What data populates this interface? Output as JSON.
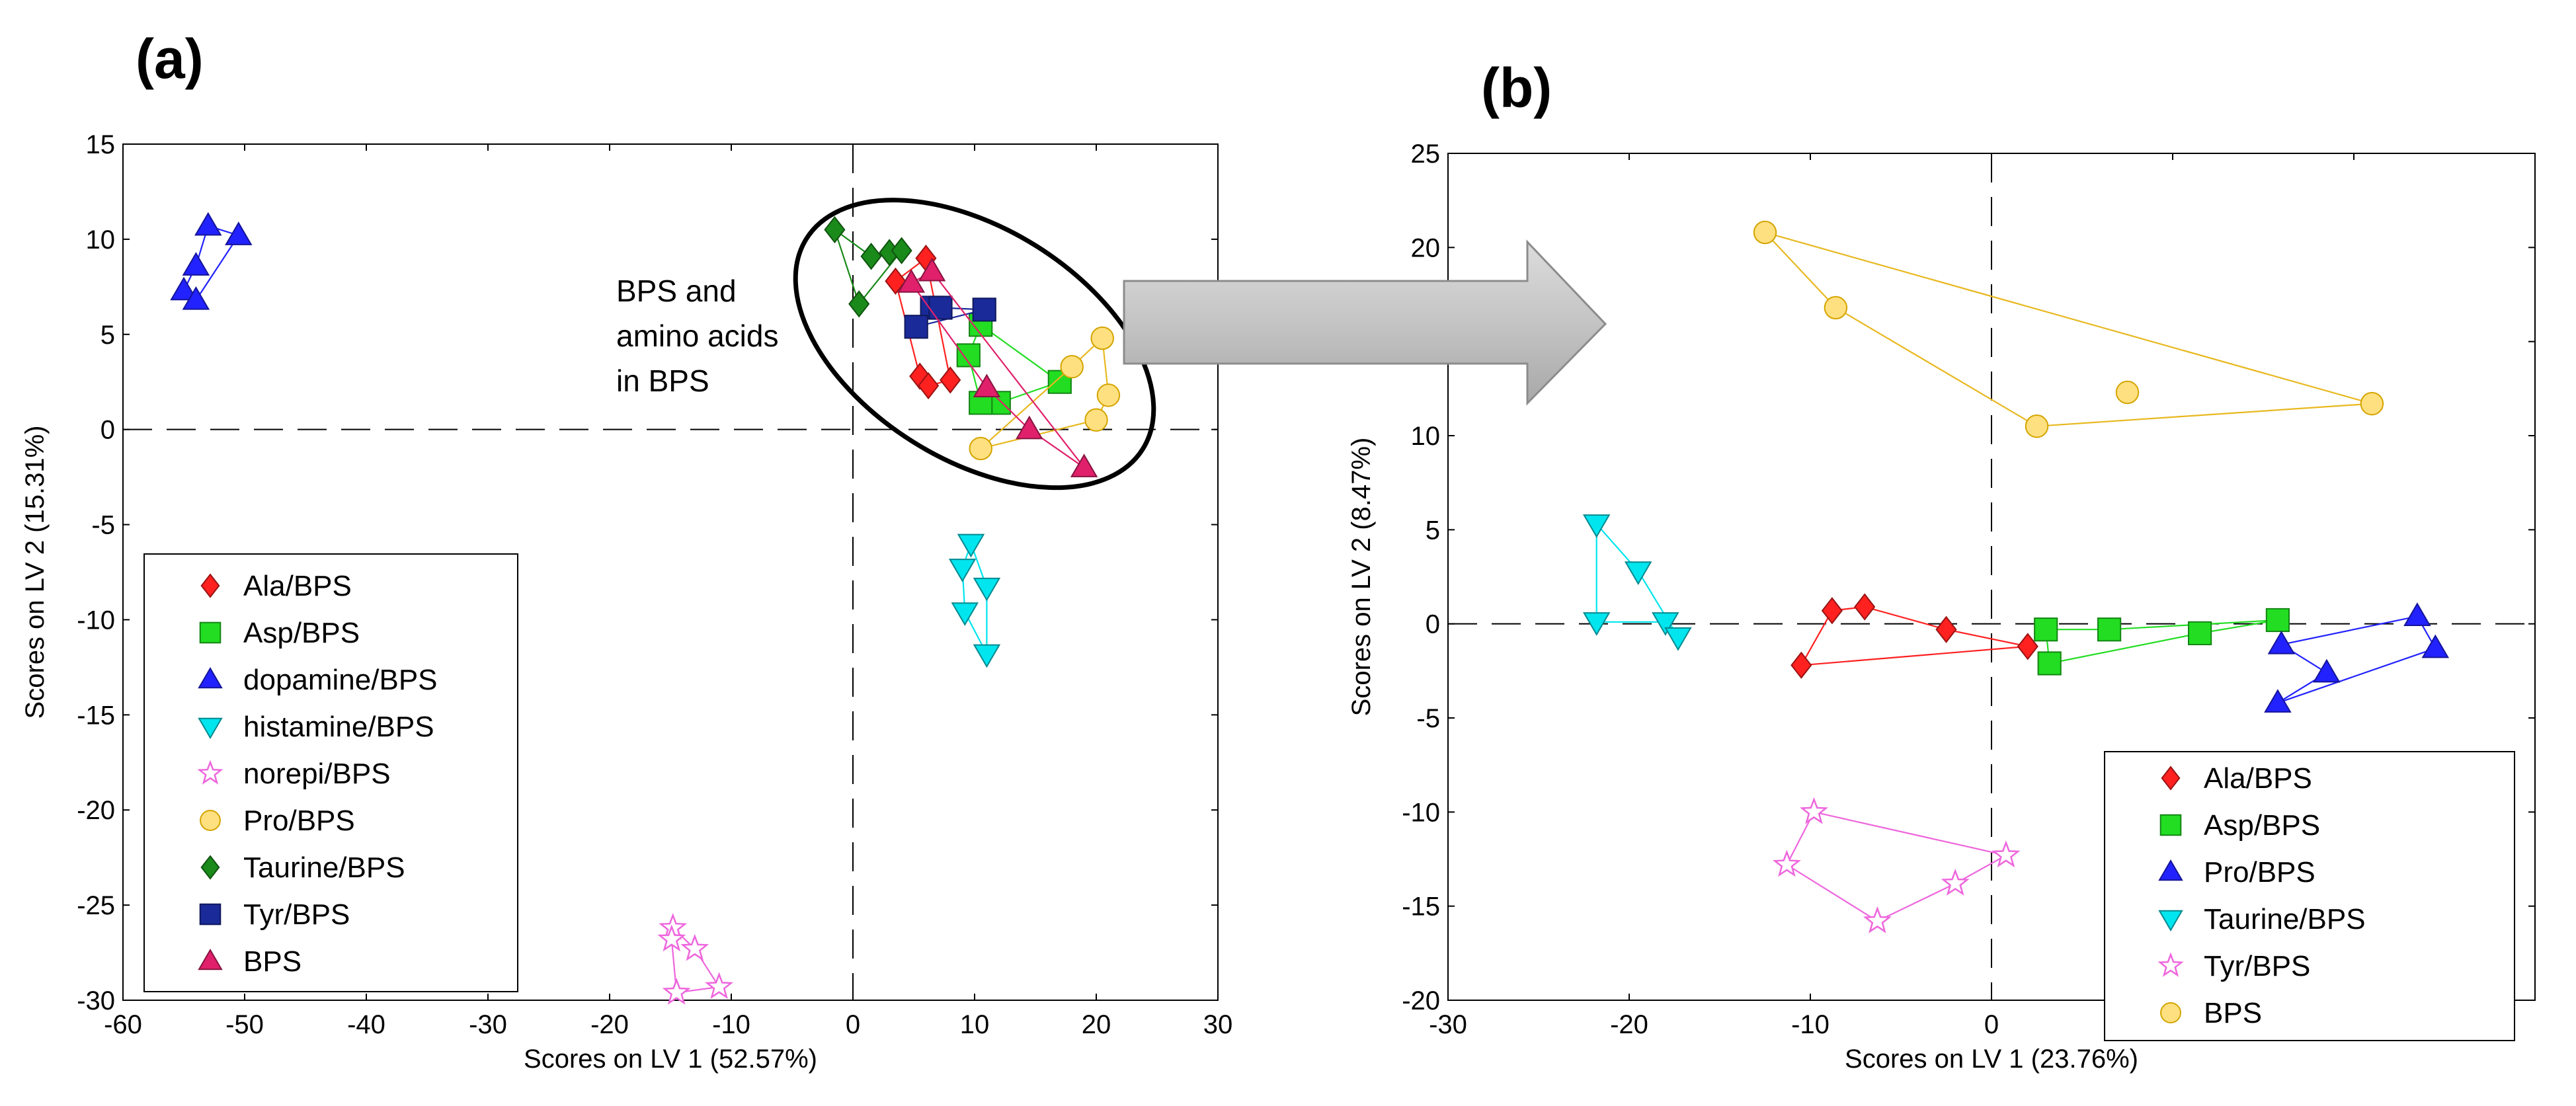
{
  "chart_data": [
    {
      "type": "scatter",
      "panel_label": "(a)",
      "xlabel": "Scores on LV 1 (52.57%)",
      "ylabel": "Scores on LV 2 (15.31%)",
      "xlim": [
        -60,
        30
      ],
      "ylim": [
        -30,
        15
      ],
      "xticks": [
        -60,
        -50,
        -40,
        -30,
        -20,
        -10,
        0,
        10,
        20,
        30
      ],
      "yticks": [
        -30,
        -25,
        -20,
        -15,
        -10,
        -5,
        0,
        5,
        10,
        15
      ],
      "xtick_labels": [
        "-60",
        "-50",
        "-40",
        "-30",
        "-20",
        "-10",
        "0",
        "10",
        "20",
        "30"
      ],
      "ytick_labels": [
        "-30",
        "-25",
        "-20",
        "-15",
        "-10",
        "-5",
        "0",
        "5",
        "10",
        "15"
      ],
      "legend_position": "bottom-left",
      "annotation": [
        "BPS and",
        "amino acids",
        "in BPS"
      ],
      "series": [
        {
          "name": "Ala/BPS",
          "color": "#ff2020",
          "marker": "diamond",
          "x": [
            3.5,
            6,
            8,
            5.5,
            6.2
          ],
          "y": [
            7.8,
            9,
            2.6,
            2.8,
            2.3
          ],
          "hull": [
            0,
            1,
            2,
            4,
            3,
            0
          ]
        },
        {
          "name": "Asp/BPS",
          "color": "#22dd22",
          "marker": "square",
          "x": [
            10.5,
            17,
            12,
            10.5,
            9.5
          ],
          "y": [
            5.5,
            2.5,
            1.4,
            1.4,
            3.9
          ],
          "hull": [
            0,
            1,
            2,
            3,
            4,
            0
          ]
        },
        {
          "name": "dopamine/BPS",
          "color": "#2222ff",
          "marker": "triangle-up",
          "x": [
            -53,
            -50.5,
            -54,
            -55,
            -54
          ],
          "y": [
            10.7,
            10.2,
            8.6,
            7.3,
            6.8
          ],
          "hull": [
            0,
            1,
            4,
            3,
            2,
            0
          ]
        },
        {
          "name": "histamine/BPS",
          "color": "#00e5ee",
          "marker": "triangle-down",
          "x": [
            9.7,
            11,
            9,
            9.2,
            11
          ],
          "y": [
            -6,
            -8.3,
            -7.3,
            -9.6,
            -11.8
          ],
          "hull": [
            0,
            1,
            4,
            3,
            2,
            0
          ]
        },
        {
          "name": "norepi/BPS",
          "color": "#ee66dd",
          "marker": "star",
          "x": [
            -14.8,
            -13,
            -14.9,
            -11,
            -14.5
          ],
          "y": [
            -26.2,
            -27.3,
            -26.8,
            -29.3,
            -29.6
          ],
          "hull": [
            0,
            1,
            3,
            4,
            2,
            0
          ]
        },
        {
          "name": "Pro/BPS",
          "color": "#ffe080",
          "marker": "circle",
          "x": [
            20.5,
            21,
            18,
            20,
            10.5
          ],
          "y": [
            4.8,
            1.8,
            3.3,
            0.5,
            -1
          ],
          "hull": [
            0,
            1,
            3,
            4,
            2,
            0
          ]
        },
        {
          "name": "Taurine/BPS",
          "color": "#1a8a1a",
          "marker": "diamond",
          "x": [
            -1.5,
            1.5,
            3,
            4,
            0.5
          ],
          "y": [
            10.5,
            9.1,
            9.3,
            9.4,
            6.6
          ],
          "hull": [
            0,
            1,
            2,
            3,
            4,
            0
          ]
        },
        {
          "name": "Tyr/BPS",
          "color": "#1a2a99",
          "marker": "square",
          "x": [
            6.5,
            7.2,
            10.8,
            5.2
          ],
          "y": [
            6.4,
            6.4,
            6.3,
            5.4
          ],
          "hull": [
            0,
            1,
            2,
            3,
            0
          ]
        },
        {
          "name": "BPS",
          "color": "#e0206a",
          "marker": "triangle-up",
          "x": [
            6.5,
            4.8,
            11,
            14.5,
            19
          ],
          "y": [
            8.3,
            7.7,
            2.2,
            0,
            -2
          ],
          "hull": [
            0,
            1,
            2,
            3,
            4,
            0
          ]
        }
      ]
    },
    {
      "type": "scatter",
      "panel_label": "(b)",
      "xlabel": "Scores on LV 1 (23.76%)",
      "ylabel": "Scores on LV 2 (8.47%)",
      "xlim": [
        -30,
        30
      ],
      "ylim": [
        -20,
        25
      ],
      "xticks": [
        -30,
        -20,
        -10,
        0,
        10,
        20,
        30
      ],
      "yticks": [
        -20,
        -15,
        -10,
        -5,
        0,
        5,
        10,
        15,
        20,
        25
      ],
      "xtick_labels": [
        "-30",
        "-20",
        "-10",
        "0",
        "",
        "",
        ""
      ],
      "ytick_labels": [
        "-20",
        "-15",
        "-10",
        "-5",
        "0",
        "5",
        "10",
        "",
        "20",
        "25"
      ],
      "legend_position": "bottom-right",
      "series": [
        {
          "name": "Ala/BPS",
          "color": "#ff2020",
          "marker": "diamond",
          "x": [
            -10.5,
            -8.8,
            -7,
            -2.5,
            2
          ],
          "y": [
            -2.2,
            0.7,
            0.9,
            -0.3,
            -1.2
          ],
          "hull": [
            0,
            1,
            2,
            3,
            4,
            0
          ]
        },
        {
          "name": "Asp/BPS",
          "color": "#22dd22",
          "marker": "square",
          "x": [
            3,
            6.5,
            11.5,
            15.8,
            3.2
          ],
          "y": [
            -0.3,
            -0.3,
            -0.5,
            0.2,
            -2.1
          ],
          "hull": [
            0,
            1,
            3,
            2,
            4,
            0
          ]
        },
        {
          "name": "Pro/BPS",
          "color": "#2222ff",
          "marker": "triangle-up",
          "x": [
            23.5,
            24.5,
            16,
            18.5,
            15.8
          ],
          "y": [
            0.4,
            -1.3,
            -1.1,
            -2.6,
            -4.2
          ],
          "hull": [
            0,
            1,
            4,
            3,
            2,
            0
          ]
        },
        {
          "name": "Taurine/BPS",
          "color": "#00e5ee",
          "marker": "triangle-down",
          "x": [
            -21.8,
            -19.5,
            -21.8,
            -18,
            -17.3
          ],
          "y": [
            5.3,
            2.8,
            0.1,
            0.1,
            -0.7
          ],
          "hull": [
            0,
            1,
            4,
            3,
            2,
            0
          ]
        },
        {
          "name": "Tyr/BPS",
          "color": "#ee66dd",
          "marker": "star",
          "x": [
            -9.8,
            -11.3,
            -6.3,
            -2,
            0.8
          ],
          "y": [
            -10,
            -12.8,
            -15.8,
            -13.8,
            -12.3
          ],
          "hull": [
            0,
            1,
            2,
            3,
            4,
            0
          ]
        },
        {
          "name": "BPS",
          "color": "#ffe080",
          "marker": "circle",
          "x": [
            -12.5,
            -8.6,
            7.5,
            21,
            2.5
          ],
          "y": [
            20.8,
            16.8,
            12.3,
            11.7,
            10.5
          ],
          "hull": [
            0,
            1,
            4,
            3,
            0
          ]
        }
      ]
    }
  ]
}
